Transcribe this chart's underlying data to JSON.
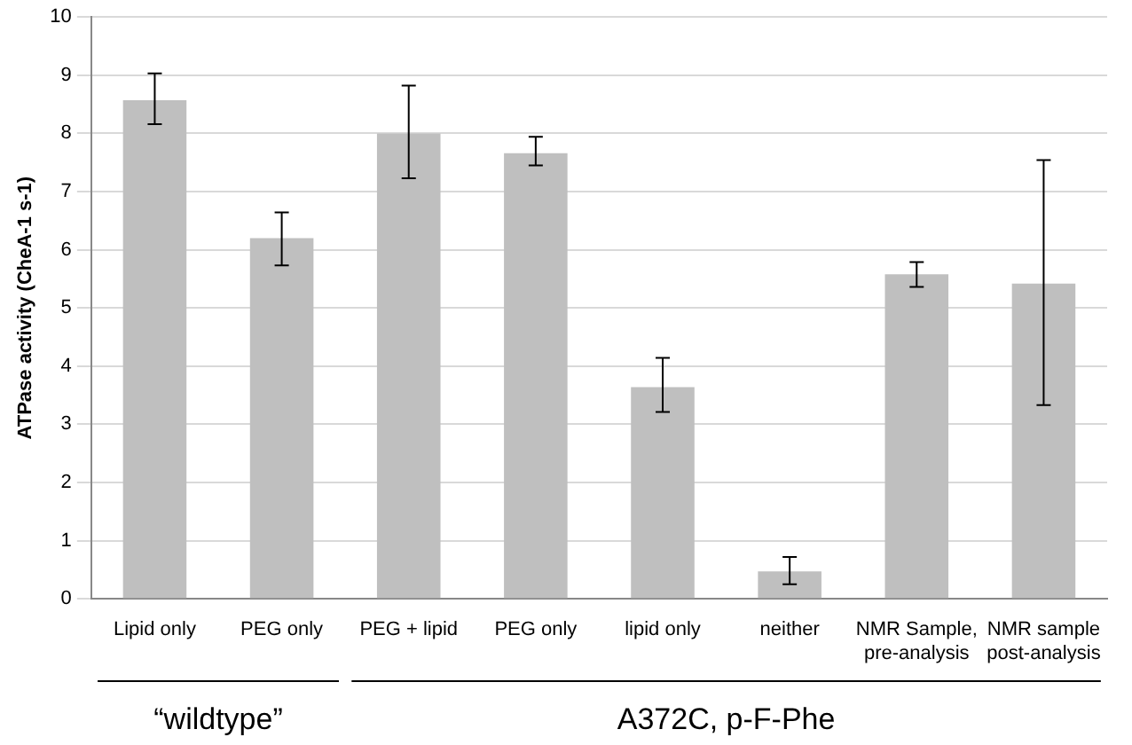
{
  "chart_data": {
    "type": "bar",
    "ylabel": "ATPase activity (CheA-1 s-1)",
    "categories": [
      "Lipid only",
      "PEG only",
      "PEG + lipid",
      "PEG only",
      "lipid only",
      "neither",
      "NMR Sample, pre-analysis",
      "NMR sample post-analysis"
    ],
    "values": [
      8.57,
      6.2,
      8.0,
      7.66,
      3.64,
      0.47,
      5.58,
      5.42
    ],
    "errors": [
      [
        8.16,
        9.03
      ],
      [
        5.73,
        6.64
      ],
      [
        7.23,
        8.82
      ],
      [
        7.45,
        7.94
      ],
      [
        3.21,
        4.14
      ],
      [
        0.25,
        0.72
      ],
      [
        5.36,
        5.79
      ],
      [
        3.33,
        7.54
      ]
    ],
    "color": "#bfbfbf",
    "ylim": [
      0,
      10
    ],
    "yticks": [
      0,
      1,
      2,
      3,
      4,
      5,
      6,
      7,
      8,
      9,
      10
    ],
    "grid": "y",
    "annotations": [
      "“wildtype”",
      "A372C, p-F-Phe"
    ]
  }
}
